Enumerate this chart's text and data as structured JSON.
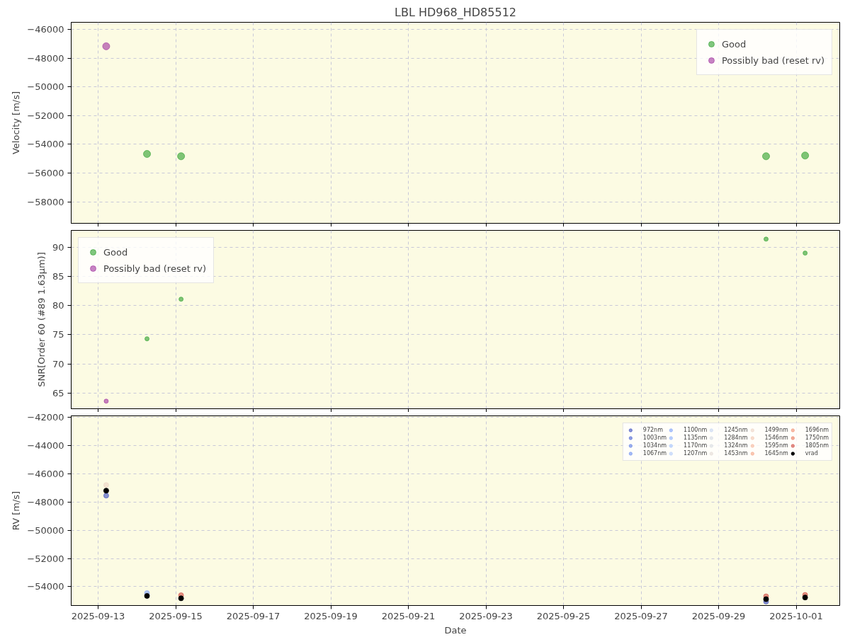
{
  "chart_data": [
    {
      "type": "scatter",
      "title": "LBL HD968_HD85512",
      "ylabel": "Velocity [m/s]",
      "marker": "circle",
      "grid": true,
      "legend": "top right",
      "tick_labels": "y",
      "x": [
        "2025-09-13T05:00",
        "2025-09-14T06:15",
        "2025-09-15T03:20",
        "2025-09-30T05:20",
        "2025-10-01T05:30"
      ],
      "xlim": [
        "2025-09-12T07:20",
        "2025-10-02T02:55"
      ],
      "xticks": [
        "2025-09-13",
        "2025-09-15",
        "2025-09-17",
        "2025-09-19",
        "2025-09-21",
        "2025-09-23",
        "2025-09-25",
        "2025-09-27",
        "2025-09-29",
        "2025-10-01"
      ],
      "ylim": [
        -59500,
        -45500
      ],
      "yticks": [
        -58000,
        -56000,
        -54000,
        -52000,
        -50000,
        -48000,
        -46000
      ],
      "series": [
        {
          "name": "Good",
          "color": "#2ca02c",
          "values": [
            null,
            -54670,
            -54830,
            -54830,
            -54780
          ]
        },
        {
          "name": "Possibly bad (reset rv)",
          "color": "#a0309f",
          "values": [
            -47170,
            null,
            null,
            null,
            null
          ]
        }
      ]
    },
    {
      "type": "scatter",
      "ylabel": "SNR[Order 60 (#89 1.63μm)]",
      "marker": "circle",
      "grid": true,
      "legend": "top left",
      "tick_labels": "y",
      "x": [
        "2025-09-13T05:00",
        "2025-09-14T06:15",
        "2025-09-15T03:20",
        "2025-09-30T05:20",
        "2025-10-01T05:30"
      ],
      "xlim": [
        "2025-09-12T07:20",
        "2025-10-02T02:55"
      ],
      "xticks": [
        "2025-09-13",
        "2025-09-15",
        "2025-09-17",
        "2025-09-19",
        "2025-09-21",
        "2025-09-23",
        "2025-09-25",
        "2025-09-27",
        "2025-09-29",
        "2025-10-01"
      ],
      "ylim": [
        62.3,
        92.9
      ],
      "yticks": [
        65,
        70,
        75,
        80,
        85,
        90
      ],
      "series": [
        {
          "name": "Good",
          "color": "#2ca02c",
          "values": [
            null,
            74.3,
            81.1,
            91.4,
            89.0
          ]
        },
        {
          "name": "Possibly bad (reset rv)",
          "color": "#a0309f",
          "values": [
            63.6,
            null,
            null,
            null,
            null
          ]
        }
      ]
    },
    {
      "type": "scatter",
      "xlabel": "Date",
      "ylabel": "RV [m/s]",
      "marker": "circle",
      "grid": true,
      "legend": "top right",
      "x": [
        "2025-09-13T05:00",
        "2025-09-14T06:15",
        "2025-09-15T03:20",
        "2025-09-30T05:20",
        "2025-10-01T05:30"
      ],
      "xlim": [
        "2025-09-12T07:20",
        "2025-10-02T02:55"
      ],
      "xticks": [
        "2025-09-13",
        "2025-09-15",
        "2025-09-17",
        "2025-09-19",
        "2025-09-21",
        "2025-09-23",
        "2025-09-25",
        "2025-09-27",
        "2025-09-29",
        "2025-10-01"
      ],
      "ylim": [
        -55330,
        -41900
      ],
      "yticks": [
        -54000,
        -52000,
        -50000,
        -48000,
        -46000,
        -44000,
        -42000
      ],
      "series": [
        {
          "name": "972nm",
          "color": "#3b4cc0",
          "values": [
            -47550,
            null,
            null,
            -55050,
            null
          ]
        },
        {
          "name": "1003nm",
          "color": "#4a63d3",
          "values": [
            null,
            null,
            null,
            null,
            null
          ]
        },
        {
          "name": "1034nm",
          "color": "#5b7be5",
          "values": [
            null,
            null,
            null,
            null,
            null
          ]
        },
        {
          "name": "1067nm",
          "color": "#6c8ff1",
          "values": [
            null,
            null,
            null,
            null,
            null
          ]
        },
        {
          "name": "1100nm",
          "color": "#7ea1fa",
          "values": [
            null,
            -54450,
            null,
            null,
            null
          ]
        },
        {
          "name": "1135nm",
          "color": "#90b2fe",
          "values": [
            null,
            null,
            null,
            null,
            null
          ]
        },
        {
          "name": "1170nm",
          "color": "#a3c2fe",
          "values": [
            null,
            null,
            null,
            null,
            null
          ]
        },
        {
          "name": "1207nm",
          "color": "#b5cdfa",
          "values": [
            null,
            null,
            null,
            null,
            null
          ]
        },
        {
          "name": "1245nm",
          "color": "#c6d6f1",
          "values": [
            null,
            null,
            null,
            null,
            null
          ]
        },
        {
          "name": "1284nm",
          "color": "#d5dbe5",
          "values": [
            null,
            null,
            null,
            null,
            null
          ]
        },
        {
          "name": "1324nm",
          "color": "#d9dce1",
          "values": [
            null,
            null,
            null,
            null,
            null
          ]
        },
        {
          "name": "1453nm",
          "color": "#e2dad5",
          "values": [
            null,
            null,
            null,
            null,
            null
          ]
        },
        {
          "name": "1499nm",
          "color": "#ecd3c5",
          "values": [
            -46800,
            null,
            null,
            null,
            null
          ]
        },
        {
          "name": "1546nm",
          "color": "#f3c7b1",
          "values": [
            null,
            null,
            null,
            null,
            null
          ]
        },
        {
          "name": "1595nm",
          "color": "#f6b89c",
          "values": [
            null,
            null,
            null,
            null,
            null
          ]
        },
        {
          "name": "1645nm",
          "color": "#f5a586",
          "values": [
            null,
            null,
            null,
            null,
            null
          ]
        },
        {
          "name": "1696nm",
          "color": "#f19071",
          "values": [
            null,
            null,
            null,
            null,
            null
          ]
        },
        {
          "name": "1750nm",
          "color": "#e9785d",
          "values": [
            null,
            null,
            null,
            null,
            null
          ]
        },
        {
          "name": "1805nm",
          "color": "#d0473d",
          "values": [
            null,
            null,
            -54600,
            -54680,
            -54580
          ]
        },
        {
          "name": "vrad",
          "color": "#000000",
          "values": [
            -47200,
            -54650,
            -54820,
            -54880,
            -54760
          ]
        }
      ]
    }
  ]
}
